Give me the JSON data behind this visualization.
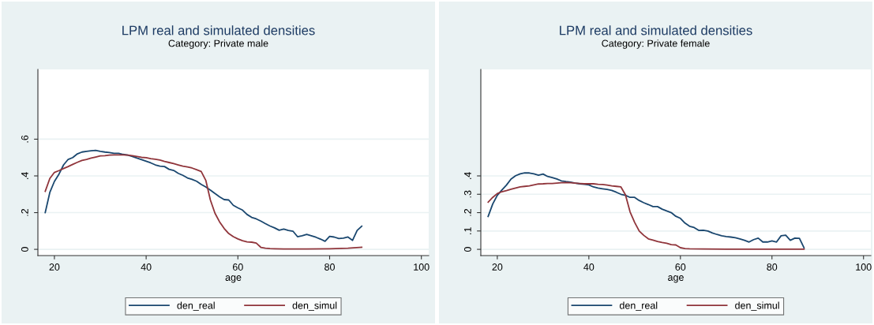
{
  "chart_data": [
    {
      "type": "line",
      "title": "LPM real and simulated densities",
      "subtitle": "Category: Private male",
      "xlabel": "age",
      "xlim": [
        16.4,
        101.6
      ],
      "xticks": [
        20,
        40,
        60,
        80,
        100
      ],
      "ylim": [
        -0.034,
        0.98
      ],
      "yticks": [
        {
          "value": 0,
          "label": "0"
        },
        {
          "value": 0.2,
          "label": ".2"
        },
        {
          "value": 0.4,
          "label": ".4"
        },
        {
          "value": 0.6,
          "label": ".6"
        }
      ],
      "grid": "y",
      "legend": "bottom",
      "line_style": "solid",
      "marker": "none",
      "series": [
        {
          "name": "den_real",
          "color": "#1a476f",
          "x": [
            18,
            19,
            20,
            21,
            22,
            23,
            24,
            25,
            26,
            27,
            28,
            29,
            30,
            31,
            32,
            33,
            34,
            35,
            36,
            37,
            38,
            39,
            40,
            41,
            42,
            43,
            44,
            45,
            46,
            47,
            48,
            49,
            50,
            51,
            52,
            53,
            54,
            55,
            56,
            57,
            58,
            59,
            60,
            61,
            62,
            63,
            64,
            65,
            66,
            67,
            68,
            69,
            70,
            71,
            72,
            73,
            74,
            75,
            76,
            77,
            78,
            79,
            80,
            81,
            82,
            83,
            84,
            85,
            86,
            87
          ],
          "values": [
            0.2,
            0.31,
            0.37,
            0.41,
            0.46,
            0.49,
            0.5,
            0.52,
            0.53,
            0.534,
            0.537,
            0.539,
            0.534,
            0.53,
            0.527,
            0.523,
            0.523,
            0.517,
            0.513,
            0.506,
            0.497,
            0.489,
            0.48,
            0.471,
            0.46,
            0.453,
            0.451,
            0.436,
            0.43,
            0.414,
            0.403,
            0.389,
            0.381,
            0.371,
            0.354,
            0.34,
            0.323,
            0.304,
            0.286,
            0.271,
            0.269,
            0.24,
            0.226,
            0.214,
            0.19,
            0.174,
            0.166,
            0.154,
            0.14,
            0.127,
            0.117,
            0.104,
            0.11,
            0.103,
            0.099,
            0.069,
            0.074,
            0.081,
            0.074,
            0.066,
            0.056,
            0.044,
            0.071,
            0.067,
            0.059,
            0.061,
            0.067,
            0.049,
            0.103,
            0.126
          ]
        },
        {
          "name": "den_simul",
          "color": "#90353b",
          "x": [
            18,
            19,
            20,
            21,
            22,
            23,
            24,
            25,
            26,
            27,
            28,
            29,
            30,
            31,
            32,
            33,
            34,
            35,
            36,
            37,
            38,
            39,
            40,
            41,
            42,
            43,
            44,
            45,
            46,
            47,
            48,
            49,
            50,
            51,
            52,
            53,
            54,
            55,
            56,
            57,
            58,
            59,
            60,
            61,
            62,
            63,
            64,
            65,
            66,
            67,
            68,
            70,
            75,
            80,
            84,
            87
          ],
          "values": [
            0.316,
            0.386,
            0.419,
            0.429,
            0.44,
            0.451,
            0.463,
            0.474,
            0.484,
            0.49,
            0.497,
            0.503,
            0.509,
            0.51,
            0.513,
            0.514,
            0.514,
            0.514,
            0.513,
            0.51,
            0.506,
            0.501,
            0.499,
            0.494,
            0.491,
            0.486,
            0.479,
            0.473,
            0.467,
            0.46,
            0.453,
            0.449,
            0.443,
            0.434,
            0.424,
            0.376,
            0.269,
            0.197,
            0.15,
            0.114,
            0.086,
            0.069,
            0.057,
            0.047,
            0.041,
            0.039,
            0.034,
            0.011,
            0.006,
            0.004,
            0.003,
            0.002,
            0.002,
            0.003,
            0.006,
            0.011
          ]
        }
      ]
    },
    {
      "type": "line",
      "title": "LPM real and simulated densities",
      "subtitle": "Category: Private female",
      "xlabel": "age",
      "xlim": [
        16.4,
        101.6
      ],
      "xticks": [
        20,
        40,
        60,
        80,
        100
      ],
      "ylim": [
        -0.034,
        0.98
      ],
      "yticks": [
        {
          "value": 0,
          "label": "0"
        },
        {
          "value": 0.1,
          "label": ".1"
        },
        {
          "value": 0.2,
          "label": ".2"
        },
        {
          "value": 0.3,
          "label": ".3"
        },
        {
          "value": 0.4,
          "label": ".4"
        }
      ],
      "grid": "y",
      "legend": "bottom",
      "line_style": "solid",
      "marker": "none",
      "series": [
        {
          "name": "den_real",
          "color": "#1a476f",
          "x": [
            18,
            19,
            20,
            21,
            22,
            23,
            24,
            25,
            26,
            27,
            28,
            29,
            30,
            31,
            32,
            33,
            34,
            35,
            36,
            37,
            38,
            39,
            40,
            41,
            42,
            43,
            44,
            45,
            46,
            47,
            48,
            49,
            50,
            51,
            52,
            53,
            54,
            55,
            56,
            57,
            58,
            59,
            60,
            61,
            62,
            63,
            64,
            65,
            66,
            67,
            68,
            69,
            70,
            71,
            72,
            73,
            74,
            75,
            76,
            77,
            78,
            79,
            80,
            81,
            82,
            83,
            84,
            85,
            86,
            87
          ],
          "values": [
            0.179,
            0.247,
            0.294,
            0.323,
            0.35,
            0.383,
            0.401,
            0.411,
            0.417,
            0.416,
            0.411,
            0.404,
            0.41,
            0.397,
            0.391,
            0.383,
            0.373,
            0.369,
            0.366,
            0.361,
            0.357,
            0.354,
            0.351,
            0.34,
            0.334,
            0.33,
            0.326,
            0.321,
            0.311,
            0.3,
            0.294,
            0.283,
            0.283,
            0.266,
            0.254,
            0.244,
            0.233,
            0.233,
            0.219,
            0.209,
            0.2,
            0.18,
            0.169,
            0.143,
            0.126,
            0.119,
            0.103,
            0.104,
            0.1,
            0.089,
            0.081,
            0.074,
            0.07,
            0.067,
            0.063,
            0.057,
            0.049,
            0.04,
            0.053,
            0.061,
            0.04,
            0.04,
            0.046,
            0.04,
            0.074,
            0.077,
            0.049,
            0.061,
            0.06,
            0.009
          ]
        },
        {
          "name": "den_simul",
          "color": "#90353b",
          "x": [
            18,
            19,
            20,
            21,
            22,
            23,
            24,
            25,
            26,
            27,
            28,
            29,
            30,
            31,
            32,
            33,
            34,
            35,
            36,
            37,
            38,
            39,
            40,
            41,
            42,
            43,
            44,
            45,
            46,
            47,
            48,
            49,
            50,
            51,
            52,
            53,
            54,
            55,
            56,
            57,
            58,
            59,
            60,
            61,
            62,
            65,
            70,
            87
          ],
          "values": [
            0.257,
            0.283,
            0.304,
            0.314,
            0.32,
            0.327,
            0.334,
            0.34,
            0.343,
            0.346,
            0.351,
            0.356,
            0.357,
            0.359,
            0.359,
            0.361,
            0.363,
            0.364,
            0.363,
            0.361,
            0.359,
            0.357,
            0.357,
            0.357,
            0.354,
            0.353,
            0.35,
            0.346,
            0.343,
            0.34,
            0.297,
            0.204,
            0.147,
            0.1,
            0.076,
            0.057,
            0.05,
            0.043,
            0.037,
            0.033,
            0.026,
            0.024,
            0.009,
            0.004,
            0.003,
            0.002,
            0.001,
            0.001
          ]
        }
      ]
    }
  ]
}
